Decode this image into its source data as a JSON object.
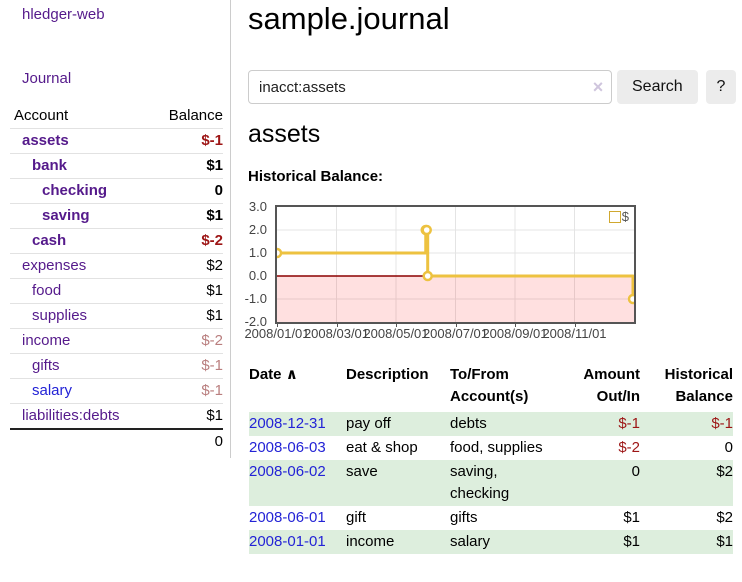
{
  "app": {
    "brand": "hledger-web",
    "nav_journal": "Journal"
  },
  "sidebar": {
    "header": {
      "account": "Account",
      "balance": "Balance"
    },
    "accounts": [
      {
        "name": "assets",
        "balance": "$-1",
        "indent": 1,
        "bold": true,
        "balance_style": "neg-strong",
        "link_style": ""
      },
      {
        "name": "bank",
        "balance": "$1",
        "indent": 2,
        "bold": true,
        "balance_style": "",
        "link_style": ""
      },
      {
        "name": "checking",
        "balance": "0",
        "indent": 3,
        "bold": true,
        "balance_style": "",
        "link_style": ""
      },
      {
        "name": "saving",
        "balance": "$1",
        "indent": 3,
        "bold": true,
        "balance_style": "",
        "link_style": ""
      },
      {
        "name": "cash",
        "balance": "$-2",
        "indent": 2,
        "bold": true,
        "balance_style": "neg-strong",
        "link_style": ""
      },
      {
        "name": "expenses",
        "balance": "$2",
        "indent": 1,
        "bold": false,
        "balance_style": "",
        "link_style": ""
      },
      {
        "name": "food",
        "balance": "$1",
        "indent": 2,
        "bold": false,
        "balance_style": "",
        "link_style": ""
      },
      {
        "name": "supplies",
        "balance": "$1",
        "indent": 2,
        "bold": false,
        "balance_style": "",
        "link_style": ""
      },
      {
        "name": "income",
        "balance": "$-2",
        "indent": 1,
        "bold": false,
        "balance_style": "neg-muted",
        "link_style": ""
      },
      {
        "name": "gifts",
        "balance": "$-1",
        "indent": 2,
        "bold": false,
        "balance_style": "neg-muted",
        "link_style": ""
      },
      {
        "name": "salary",
        "balance": "$-1",
        "indent": 2,
        "bold": false,
        "balance_style": "neg-muted",
        "link_style": "blue"
      },
      {
        "name": "liabilities:debts",
        "balance": "$1",
        "indent": 1,
        "bold": false,
        "balance_style": "",
        "link_style": ""
      }
    ],
    "total": "0"
  },
  "header": {
    "title": "sample.journal"
  },
  "search": {
    "value": "inacct:assets",
    "clear_icon": "×",
    "button_label": "Search",
    "help_label": "?"
  },
  "account_page": {
    "heading": "assets",
    "chart_label": "Historical Balance:"
  },
  "chart_data": {
    "type": "line",
    "step": true,
    "title": "Historical Balance",
    "series_name": "$",
    "series_color": "#edc240",
    "x": [
      "2008-01-01",
      "2008-06-01",
      "2008-06-02",
      "2008-06-03",
      "2008-12-31"
    ],
    "y": [
      1,
      2,
      2,
      0,
      -1
    ],
    "ylim": [
      -2,
      3
    ],
    "yticks": [
      "3.0",
      "2.0",
      "1.0",
      "0.0",
      "-1.0",
      "-2.0"
    ],
    "ytick_values": [
      3,
      2,
      1,
      0,
      -1,
      -2
    ],
    "xticks": [
      "2008/01/01",
      "2008/03/01",
      "2008/05/01",
      "2008/07/01",
      "2008/09/01",
      "2008/11/01"
    ],
    "xtick_months": [
      0,
      2,
      4,
      6,
      8,
      10
    ],
    "x_range_months": 12,
    "grid": true,
    "legend_position": "top-right",
    "negative_fill": "rgba(255,0,0,0.12)",
    "zero_line_color": "#8b0000"
  },
  "register": {
    "sort_icon": "∧",
    "headers": {
      "date": "Date",
      "description": "Description",
      "accounts": "To/From Account(s)",
      "amount": "Amount Out/In",
      "balance": "Historical Balance"
    },
    "rows": [
      {
        "date": "2008-12-31",
        "description": "pay off",
        "accounts": "debts",
        "amount": "$-1",
        "amount_negative": true,
        "balance": "$-1",
        "balance_negative": true
      },
      {
        "date": "2008-06-03",
        "description": "eat & shop",
        "accounts": "food, supplies",
        "amount": "$-2",
        "amount_negative": true,
        "balance": "0",
        "balance_negative": false
      },
      {
        "date": "2008-06-02",
        "description": "save",
        "accounts": "saving, checking",
        "amount": "0",
        "amount_negative": false,
        "balance": "$2",
        "balance_negative": false
      },
      {
        "date": "2008-06-01",
        "description": "gift",
        "accounts": "gifts",
        "amount": "$1",
        "amount_negative": false,
        "balance": "$2",
        "balance_negative": false
      },
      {
        "date": "2008-01-01",
        "description": "income",
        "accounts": "salary",
        "amount": "$1",
        "amount_negative": false,
        "balance": "$1",
        "balance_negative": false
      }
    ]
  },
  "colors": {
    "link_purple": "#551a8b",
    "link_blue": "#2323d6",
    "negative_strong": "#9d1515",
    "negative_muted": "#b97e7e",
    "row_green": "#ddeedd",
    "chart_gold": "#edc240"
  }
}
